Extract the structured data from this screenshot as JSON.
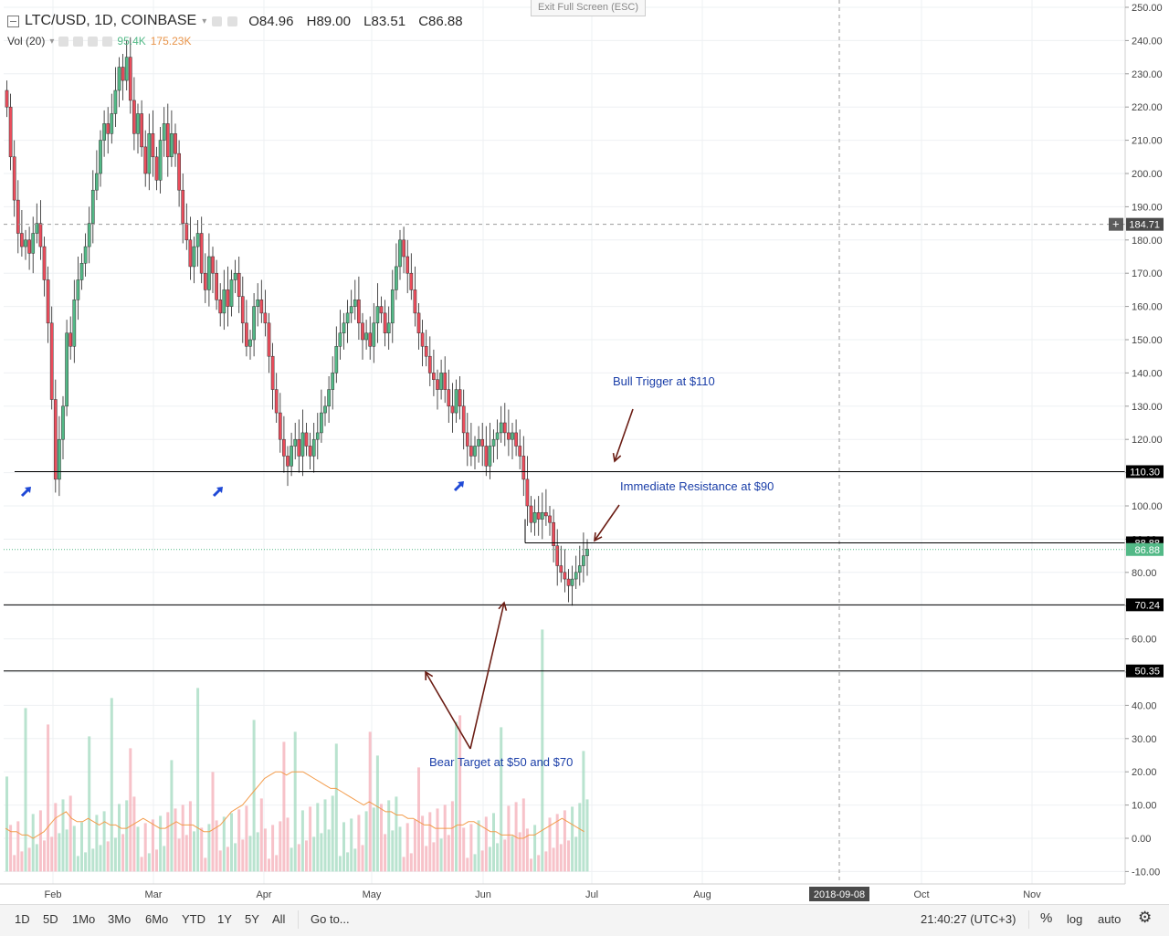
{
  "header": {
    "symbol": "LTC/USD, 1D, COINBASE",
    "open": "O84.96",
    "high": "H89.00",
    "low": "L83.51",
    "close": "C86.88",
    "vol_label": "Vol (20)",
    "vol_value": "95.4K",
    "vol_ma": "175.23K",
    "exit_fullscreen": "Exit Full Screen (ESC)"
  },
  "price_axis": {
    "ticks": [
      "250.00",
      "240.00",
      "230.00",
      "220.00",
      "210.00",
      "200.00",
      "190.00",
      "180.00",
      "170.00",
      "160.00",
      "150.00",
      "140.00",
      "130.00",
      "120.00",
      "110.00",
      "100.00",
      "90.00",
      "80.00",
      "70.00",
      "60.00",
      "50.00",
      "40.00",
      "30.00",
      "20.00",
      "10.00",
      "0.00",
      "-10.00"
    ],
    "markers": [
      {
        "label": "184.71",
        "kind": "crosshair"
      },
      {
        "label": "110.30",
        "kind": "line"
      },
      {
        "label": "88.88",
        "kind": "line"
      },
      {
        "label": "86.88",
        "kind": "last"
      },
      {
        "label": "70.24",
        "kind": "line"
      },
      {
        "label": "50.35",
        "kind": "line"
      }
    ]
  },
  "time_axis": {
    "labels": [
      "Feb",
      "Mar",
      "Apr",
      "May",
      "Jun",
      "Jul",
      "Aug",
      "Oct",
      "Nov"
    ],
    "crosshair_date": "2018-09-08"
  },
  "annotations": {
    "bull": "Bull Trigger at $110",
    "resistance": "Immediate Resistance at $90",
    "bear": "Bear Target at $50 and $70"
  },
  "toolbar": {
    "timeframes": [
      "1D",
      "5D",
      "1Mo",
      "3Mo",
      "6Mo",
      "YTD",
      "1Y",
      "5Y",
      "All"
    ],
    "goto": "Go to...",
    "clock": "21:40:27 (UTC+3)",
    "percent": "%",
    "log": "log",
    "auto": "auto"
  },
  "colors": {
    "up": "#53b987",
    "down": "#eb4d5c",
    "wick": "#222222",
    "ma": "#f39c4b",
    "annotation": "#1a3ea8",
    "arrow": "#6b1d14",
    "blue_arrow": "#1f49d6"
  },
  "chart_data": {
    "type": "candlestick",
    "symbol": "LTC/USD",
    "interval": "1D",
    "exchange": "COINBASE",
    "ohlc_last": {
      "open": 84.96,
      "high": 89.0,
      "low": 83.51,
      "close": 86.88
    },
    "y_range": [
      -10,
      250
    ],
    "horizontal_levels": [
      110.3,
      88.88,
      70.24,
      50.35
    ],
    "crosshair_price": 184.71,
    "closes": [
      220,
      205,
      192,
      182,
      178,
      180,
      176,
      182,
      185,
      178,
      168,
      155,
      132,
      108,
      120,
      130,
      152,
      148,
      162,
      168,
      173,
      178,
      185,
      195,
      200,
      210,
      215,
      212,
      218,
      225,
      232,
      228,
      235,
      222,
      212,
      218,
      208,
      200,
      212,
      205,
      198,
      210,
      215,
      205,
      212,
      206,
      195,
      185,
      180,
      172,
      178,
      182,
      170,
      165,
      175,
      170,
      162,
      158,
      165,
      160,
      168,
      170,
      163,
      155,
      148,
      150,
      160,
      162,
      158,
      155,
      145,
      135,
      128,
      120,
      115,
      112,
      118,
      120,
      115,
      122,
      118,
      115,
      120,
      122,
      128,
      130,
      135,
      140,
      148,
      152,
      155,
      158,
      160,
      162,
      155,
      150,
      152,
      148,
      155,
      160,
      158,
      152,
      155,
      165,
      172,
      180,
      175,
      170,
      165,
      158,
      152,
      148,
      145,
      140,
      138,
      135,
      140,
      135,
      130,
      128,
      135,
      130,
      122,
      118,
      115,
      118,
      120,
      118,
      112,
      118,
      120,
      122,
      125,
      122,
      120,
      122,
      118,
      115,
      108,
      100,
      95,
      98,
      96,
      98,
      97,
      95,
      88,
      82,
      80,
      78,
      76,
      78,
      80,
      82,
      85,
      87
    ],
    "volume_ma": [
      3,
      2,
      2,
      1,
      1,
      0,
      1,
      2,
      4,
      6,
      7,
      8,
      6,
      5,
      5,
      6,
      5,
      4,
      5,
      4,
      4,
      3,
      3,
      4,
      5,
      6,
      5,
      4,
      3,
      3,
      4,
      5,
      4,
      4,
      4,
      3,
      2,
      2,
      3,
      4,
      6,
      8,
      9,
      10,
      12,
      14,
      16,
      18,
      19,
      20,
      20,
      19,
      20,
      20,
      20,
      19,
      18,
      17,
      16,
      15,
      15,
      14,
      13,
      12,
      11,
      10,
      11,
      10,
      9,
      8,
      8,
      7,
      7,
      6,
      6,
      5,
      4,
      4,
      3,
      3,
      3,
      3,
      4,
      4,
      5,
      5,
      4,
      3,
      2,
      2,
      1,
      1,
      1,
      0,
      0,
      1,
      1,
      2,
      3,
      4,
      5,
      6,
      5,
      4,
      3,
      2
    ]
  }
}
